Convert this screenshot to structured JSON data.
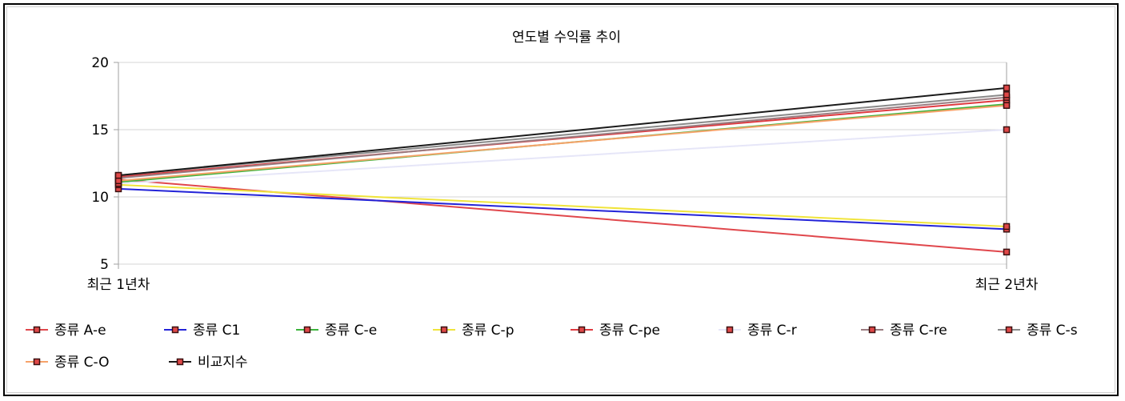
{
  "chart_data": {
    "type": "line",
    "title": "연도별 수익률 추이",
    "categories": [
      "최근 1년차",
      "최근 2년차"
    ],
    "ylim": [
      5,
      20
    ],
    "yticks": [
      5,
      10,
      15,
      20
    ],
    "grid": true,
    "legend_position": "bottom",
    "series": [
      {
        "name": "종류 A-e",
        "color": "#e0474c",
        "values": [
          11.3,
          5.9
        ]
      },
      {
        "name": "종류 C1",
        "color": "#2323d8",
        "values": [
          10.6,
          7.6
        ]
      },
      {
        "name": "종류 C-e",
        "color": "#3cb43c",
        "values": [
          11.1,
          16.9
        ]
      },
      {
        "name": "종류 C-p",
        "color": "#f0e43c",
        "values": [
          10.9,
          7.8
        ]
      },
      {
        "name": "종류 C-pe",
        "color": "#e03a40",
        "values": [
          11.5,
          17.2
        ]
      },
      {
        "name": "종류 C-r",
        "color": "#e6e6f8",
        "values": [
          11.0,
          15.0
        ]
      },
      {
        "name": "종류 C-re",
        "color": "#9a7c80",
        "values": [
          11.4,
          17.4
        ]
      },
      {
        "name": "종류 C-s",
        "color": "#8a8a8a",
        "values": [
          11.6,
          17.6
        ]
      },
      {
        "name": "종류 C-O",
        "color": "#f6a36a",
        "values": [
          11.2,
          16.8
        ]
      },
      {
        "name": "비교지수",
        "color": "#1a1a1a",
        "values": [
          11.6,
          18.1
        ]
      }
    ]
  }
}
